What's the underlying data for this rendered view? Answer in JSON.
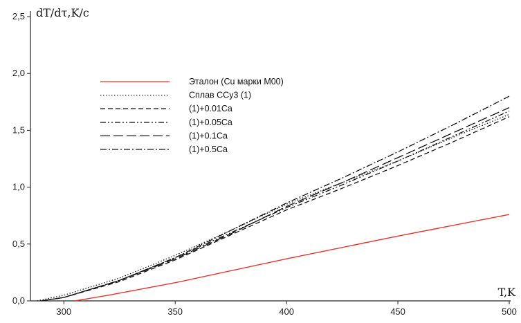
{
  "chart_data": {
    "type": "line",
    "ylabel": "dT/dτ,K/c",
    "xlabel": "T,K",
    "xlim": [
      285,
      500
    ],
    "ylim": [
      0,
      2.5
    ],
    "x_ticks": [
      "300",
      "350",
      "400",
      "450",
      "500"
    ],
    "y_ticks": [
      "0,0",
      "0,5",
      "1,0",
      "1,5",
      "2,0",
      "2,5"
    ],
    "grid": false,
    "legend_position": "center-left",
    "series": [
      {
        "name": "Эталон (Cu марки М00)",
        "color": "#e8322f",
        "dash": "solid",
        "x": [
          305,
          320,
          350,
          400,
          450,
          500
        ],
        "y": [
          0.0,
          0.05,
          0.16,
          0.37,
          0.57,
          0.76
        ]
      },
      {
        "name": "Сплав ССу3 (1)",
        "color": "#111111",
        "dash": "dotted",
        "x": [
          288,
          300,
          325,
          350,
          375,
          400,
          425,
          450,
          475,
          500
        ],
        "y": [
          0.0,
          0.05,
          0.2,
          0.4,
          0.62,
          0.85,
          1.04,
          1.23,
          1.44,
          1.64
        ]
      },
      {
        "name": "(1)+0.01Ca",
        "color": "#111111",
        "dash": "dashed",
        "x": [
          290,
          300,
          325,
          350,
          375,
          400,
          425,
          450,
          475,
          500
        ],
        "y": [
          0.0,
          0.03,
          0.17,
          0.36,
          0.58,
          0.8,
          0.99,
          1.19,
          1.4,
          1.62
        ]
      },
      {
        "name": "(1)+0.05Ca",
        "color": "#111111",
        "dash": "dashdotdot",
        "x": [
          290,
          300,
          325,
          350,
          375,
          400,
          425,
          450,
          475,
          500
        ],
        "y": [
          0.0,
          0.03,
          0.18,
          0.38,
          0.6,
          0.82,
          1.02,
          1.23,
          1.45,
          1.67
        ]
      },
      {
        "name": "(1)+0.1Ca",
        "color": "#111111",
        "dash": "longdash",
        "x": [
          290,
          300,
          325,
          350,
          375,
          400,
          425,
          450,
          475,
          500
        ],
        "y": [
          0.0,
          0.03,
          0.18,
          0.37,
          0.59,
          0.83,
          1.04,
          1.26,
          1.48,
          1.7
        ]
      },
      {
        "name": "(1)+0.5Ca",
        "color": "#111111",
        "dash": "dashdot",
        "x": [
          290,
          300,
          325,
          350,
          375,
          400,
          425,
          450,
          475,
          500
        ],
        "y": [
          0.0,
          0.03,
          0.18,
          0.38,
          0.62,
          0.86,
          1.08,
          1.31,
          1.55,
          1.8
        ]
      }
    ]
  }
}
